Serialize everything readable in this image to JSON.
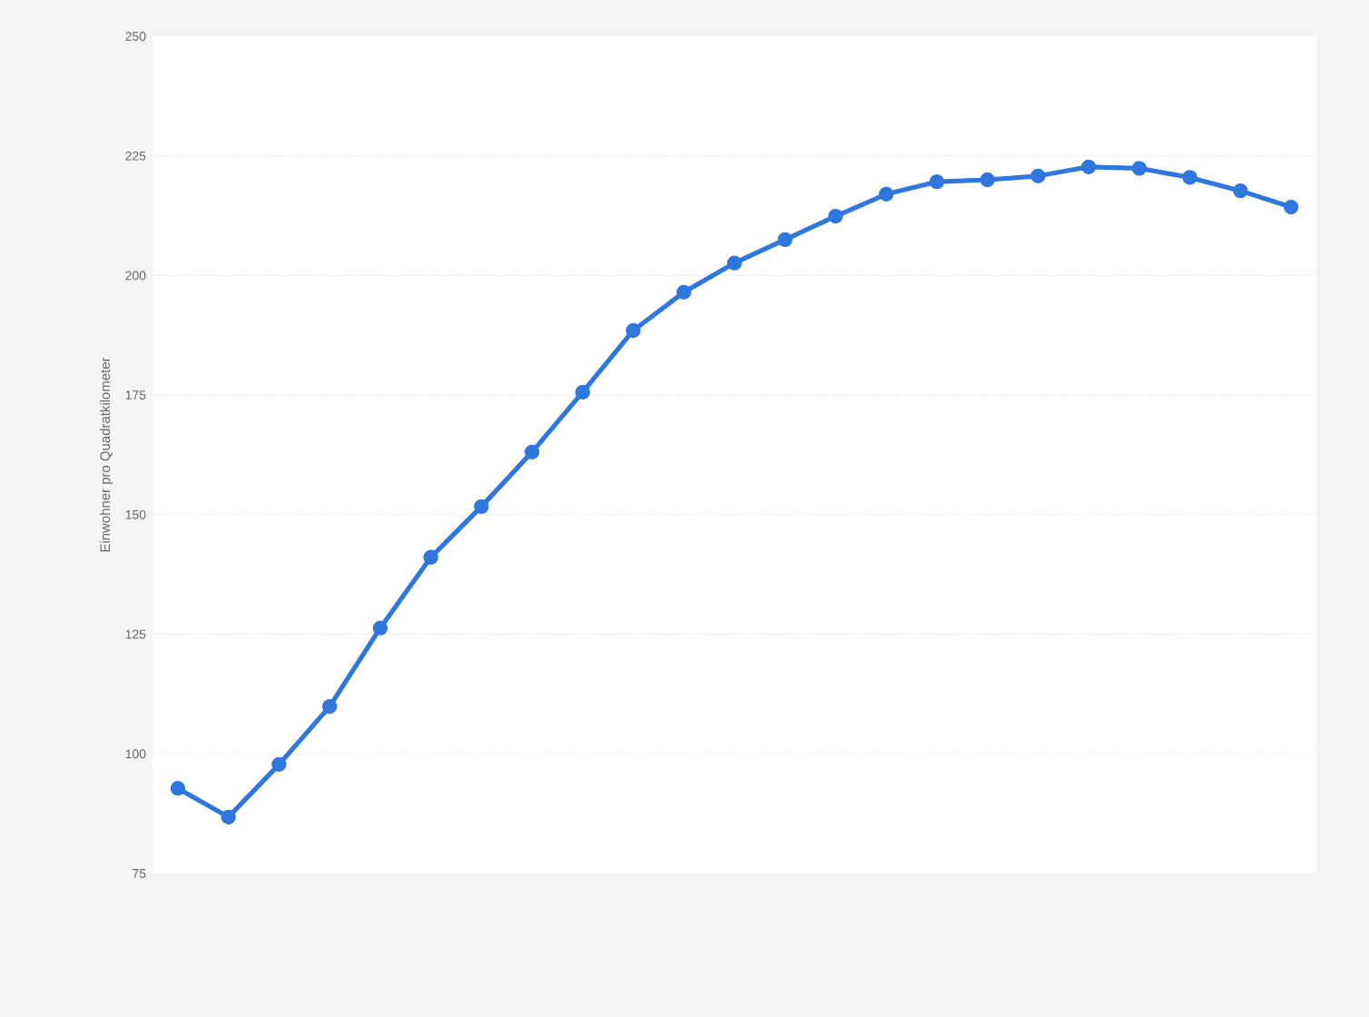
{
  "chart_data": {
    "type": "line",
    "ylabel": "Einwohner pro Quadratkilometer",
    "categories": [
      null,
      null,
      null,
      null,
      null,
      null,
      null,
      null,
      null,
      null,
      null,
      null,
      null,
      null,
      null,
      null,
      null,
      null,
      null,
      null,
      null,
      null,
      null
    ],
    "series": [
      {
        "color": "#2f77dd",
        "values": [
          92.8,
          86.8,
          97.8,
          109.9,
          126.3,
          141.1,
          151.7,
          163.1,
          175.6,
          188.5,
          196.5,
          202.6,
          207.5,
          212.4,
          217.0,
          219.6,
          220.0,
          220.8,
          222.7,
          222.4,
          220.5,
          217.7,
          214.3
        ]
      }
    ],
    "ylim": [
      75,
      250
    ],
    "yticks": [
      75,
      100,
      125,
      150,
      175,
      200,
      225,
      250
    ],
    "grid": "y",
    "marker": "circle",
    "line_style": "solid",
    "tick_labels": "y"
  }
}
